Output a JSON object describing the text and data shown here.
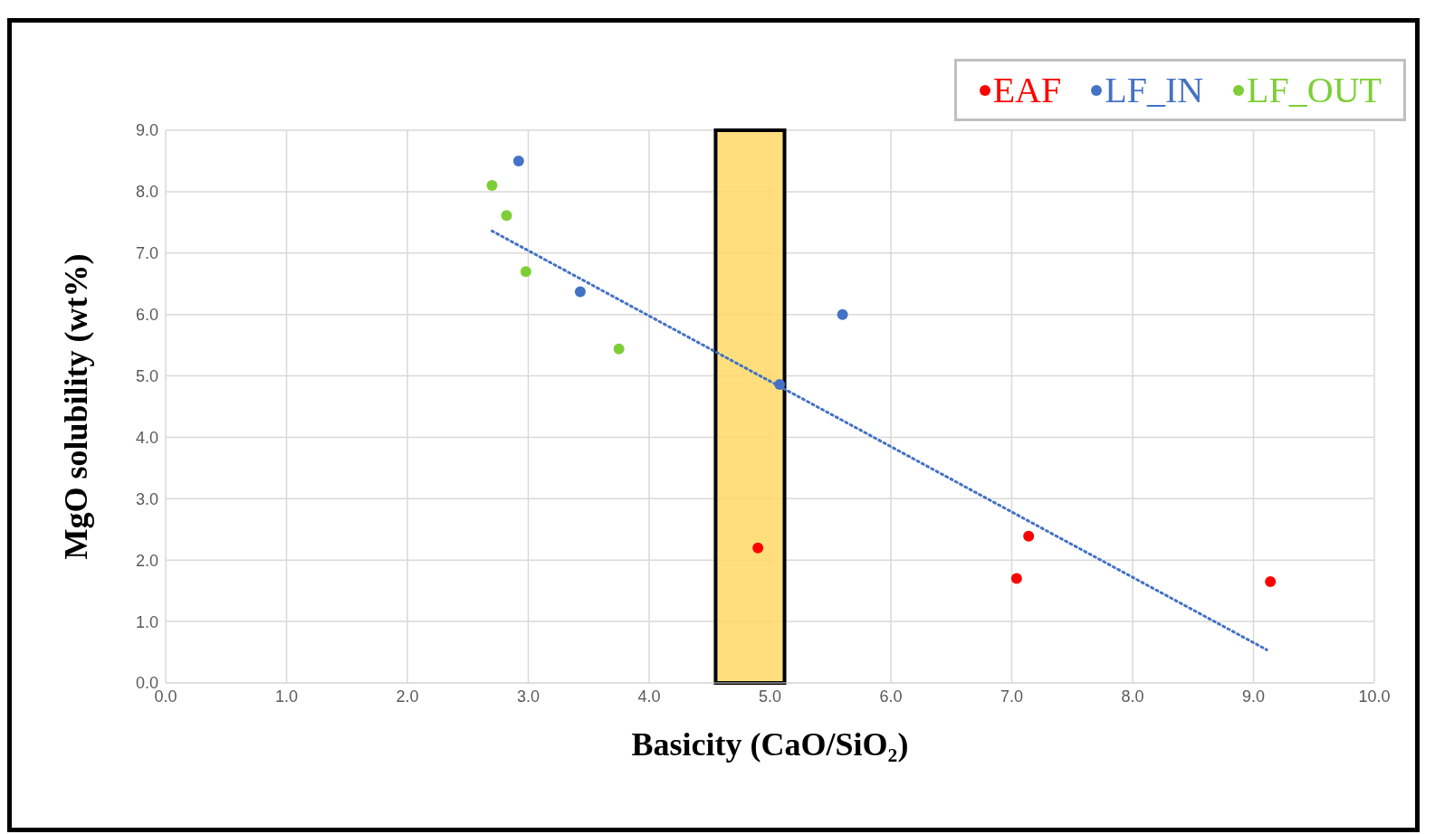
{
  "chart_data": {
    "type": "scatter",
    "xlabel": "Basicity (CaO/SiO₂)",
    "ylabel": "MgO solubility (wt%)",
    "xlim": [
      0,
      10
    ],
    "xticks": [
      {
        "value": 0,
        "label": "0.0"
      },
      {
        "value": 1,
        "label": "1.0"
      },
      {
        "value": 2,
        "label": "2.0"
      },
      {
        "value": 3,
        "label": "3.0"
      },
      {
        "value": 4,
        "label": "4.0"
      },
      {
        "value": 5,
        "label": "5.0"
      },
      {
        "value": 6,
        "label": "6.0"
      },
      {
        "value": 7,
        "label": "7.0"
      },
      {
        "value": 8,
        "label": "8.0"
      },
      {
        "value": 9,
        "label": "9.0"
      },
      {
        "value": 10,
        "label": "10.0"
      }
    ],
    "ylim": [
      0,
      9
    ],
    "yticks": [
      {
        "value": 0,
        "label": "0.0"
      },
      {
        "value": 1,
        "label": "1.0"
      },
      {
        "value": 2,
        "label": "2.0"
      },
      {
        "value": 3,
        "label": "3.0"
      },
      {
        "value": 4,
        "label": "4.0"
      },
      {
        "value": 5,
        "label": "5.0"
      },
      {
        "value": 6,
        "label": "6.0"
      },
      {
        "value": 7,
        "label": "7.0"
      },
      {
        "value": 8,
        "label": "8.0"
      },
      {
        "value": 9,
        "label": "9.0"
      }
    ],
    "grid": true,
    "legend": "top right",
    "marker": "circle",
    "series": [
      {
        "name": "EAF",
        "color": "#ff0000",
        "x": [
          7.14,
          7.04,
          9.14,
          4.9
        ],
        "values": [
          2.39,
          1.7,
          1.65,
          2.2
        ]
      },
      {
        "name": "LF_IN",
        "color": "#4472c4",
        "x": [
          2.92,
          3.43,
          5.6,
          5.08
        ],
        "values": [
          8.5,
          6.37,
          6.0,
          4.86
        ]
      },
      {
        "name": "LF_OUT",
        "color": "#7dce36",
        "x": [
          2.7,
          2.82,
          2.98,
          3.75
        ],
        "values": [
          8.1,
          7.61,
          6.7,
          5.44
        ]
      },
      {
        "type": "line",
        "color": "#4472c4",
        "line_style": "dotted",
        "marker": "none",
        "x": [
          2.7,
          9.11
        ],
        "values": [
          7.36,
          0.54
        ]
      }
    ],
    "bands": [
      {
        "axis": "x",
        "from": 4.55,
        "to": 5.12,
        "color": "#ffd966"
      }
    ]
  }
}
